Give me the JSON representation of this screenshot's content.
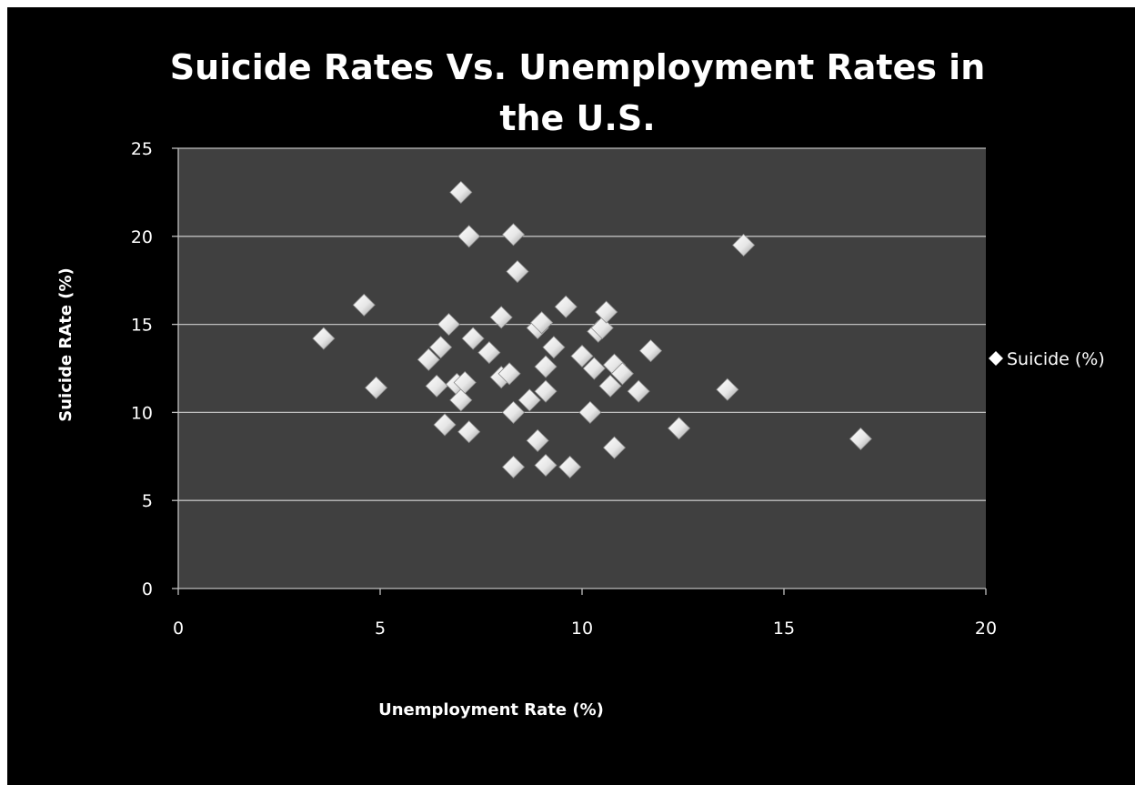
{
  "chart_data": {
    "type": "scatter",
    "title": "Suicide Rates Vs. Unemployment Rates in the U.S.",
    "xlabel": "Unemployment Rate (%)",
    "ylabel": "Suicide RAte (%)",
    "xlim": [
      0,
      20
    ],
    "ylim": [
      0,
      25
    ],
    "x_ticks": [
      "0",
      "5",
      "10",
      "15",
      "20"
    ],
    "y_ticks": [
      "0",
      "5",
      "10",
      "15",
      "20",
      "25"
    ],
    "grid": "horizontal",
    "legend_position": "right",
    "plot_background": "#404040",
    "marker_color": "#f2f2f2",
    "series": [
      {
        "name": "Suicide (%)",
        "points": [
          [
            3.6,
            14.2
          ],
          [
            4.6,
            16.1
          ],
          [
            4.9,
            11.4
          ],
          [
            6.2,
            13.0
          ],
          [
            6.4,
            11.5
          ],
          [
            6.5,
            13.7
          ],
          [
            6.6,
            9.3
          ],
          [
            6.7,
            15.0
          ],
          [
            6.9,
            11.6
          ],
          [
            7.0,
            22.5
          ],
          [
            7.0,
            10.7
          ],
          [
            7.1,
            11.7
          ],
          [
            7.2,
            20.0
          ],
          [
            7.2,
            8.9
          ],
          [
            7.3,
            14.2
          ],
          [
            7.7,
            13.4
          ],
          [
            8.0,
            12.0
          ],
          [
            8.0,
            15.4
          ],
          [
            8.2,
            12.2
          ],
          [
            8.3,
            20.1
          ],
          [
            8.3,
            10.0
          ],
          [
            8.3,
            6.9
          ],
          [
            8.4,
            18.0
          ],
          [
            8.7,
            10.7
          ],
          [
            8.9,
            14.8
          ],
          [
            8.9,
            8.4
          ],
          [
            9.0,
            15.1
          ],
          [
            9.1,
            12.6
          ],
          [
            9.1,
            11.2
          ],
          [
            9.1,
            7.0
          ],
          [
            9.3,
            13.7
          ],
          [
            9.6,
            16.0
          ],
          [
            9.7,
            6.9
          ],
          [
            10.0,
            13.2
          ],
          [
            10.2,
            10.0
          ],
          [
            10.3,
            12.5
          ],
          [
            10.4,
            14.6
          ],
          [
            10.5,
            14.8
          ],
          [
            10.6,
            15.7
          ],
          [
            10.7,
            11.5
          ],
          [
            10.8,
            12.7
          ],
          [
            10.8,
            8.0
          ],
          [
            11.0,
            12.2
          ],
          [
            11.4,
            11.2
          ],
          [
            11.7,
            13.5
          ],
          [
            12.4,
            9.1
          ],
          [
            13.6,
            11.3
          ],
          [
            14.0,
            19.5
          ],
          [
            16.9,
            8.5
          ]
        ]
      }
    ]
  }
}
